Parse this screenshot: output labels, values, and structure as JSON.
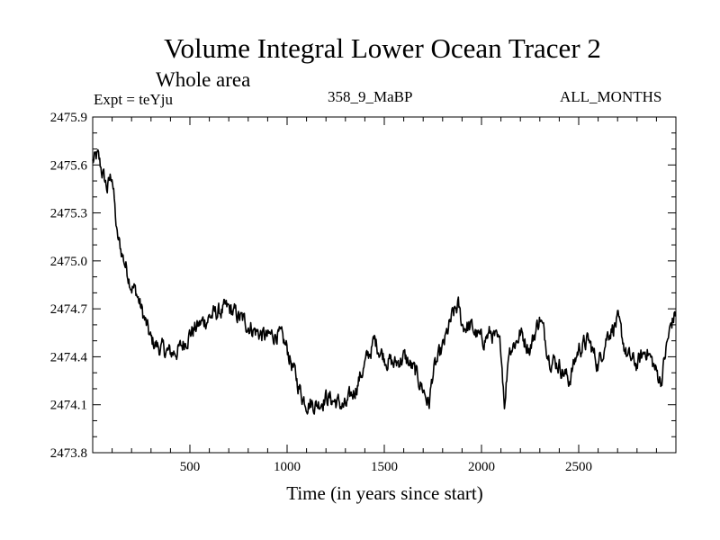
{
  "chart_data": {
    "type": "line",
    "title": "Volume Integral Lower Ocean Tracer 2",
    "subtitle": "Whole area",
    "annotations": {
      "experiment": "Expt = teYju",
      "run": "358_9_MaBP",
      "months": "ALL_MONTHS"
    },
    "xlabel": "Time (in years since start)",
    "ylabel": "",
    "xlim": [
      0,
      3000
    ],
    "ylim": [
      2473.8,
      2475.9
    ],
    "xticks": [
      500,
      1000,
      1500,
      2000,
      2500
    ],
    "yticks": [
      2473.8,
      2474.1,
      2474.4,
      2474.7,
      2475.0,
      2475.3,
      2475.6,
      2475.9
    ],
    "ytick_labels": [
      "2473.8",
      "2474.1",
      "2474.4",
      "2474.7",
      "2475.0",
      "2475.3",
      "2475.6",
      "2475.9"
    ],
    "series": [
      {
        "name": "Lower Ocean Tracer 2",
        "x": [
          0,
          25,
          50,
          75,
          100,
          125,
          150,
          175,
          200,
          225,
          250,
          275,
          300,
          350,
          400,
          450,
          500,
          550,
          600,
          650,
          700,
          750,
          800,
          850,
          900,
          950,
          1000,
          1050,
          1080,
          1100,
          1150,
          1200,
          1250,
          1300,
          1350,
          1400,
          1450,
          1500,
          1550,
          1600,
          1650,
          1700,
          1730,
          1750,
          1800,
          1850,
          1880,
          1900,
          1950,
          2000,
          2050,
          2100,
          2120,
          2140,
          2180,
          2200,
          2250,
          2300,
          2350,
          2400,
          2450,
          2500,
          2550,
          2600,
          2650,
          2700,
          2750,
          2800,
          2850,
          2900,
          2925,
          2950,
          2975,
          3000
        ],
        "values": [
          2475.62,
          2475.65,
          2475.55,
          2475.45,
          2475.55,
          2475.15,
          2475.05,
          2474.95,
          2474.85,
          2474.8,
          2474.7,
          2474.6,
          2474.5,
          2474.45,
          2474.42,
          2474.45,
          2474.55,
          2474.6,
          2474.65,
          2474.68,
          2474.7,
          2474.65,
          2474.6,
          2474.55,
          2474.52,
          2474.55,
          2474.45,
          2474.25,
          2474.15,
          2474.12,
          2474.1,
          2474.15,
          2474.12,
          2474.08,
          2474.2,
          2474.35,
          2474.5,
          2474.4,
          2474.35,
          2474.4,
          2474.32,
          2474.2,
          2474.1,
          2474.3,
          2474.45,
          2474.65,
          2474.72,
          2474.6,
          2474.58,
          2474.5,
          2474.55,
          2474.45,
          2474.1,
          2474.45,
          2474.5,
          2474.55,
          2474.45,
          2474.65,
          2474.4,
          2474.35,
          2474.25,
          2474.45,
          2474.5,
          2474.35,
          2474.55,
          2474.62,
          2474.4,
          2474.35,
          2474.45,
          2474.3,
          2474.25,
          2474.45,
          2474.6,
          2474.68
        ]
      }
    ]
  }
}
